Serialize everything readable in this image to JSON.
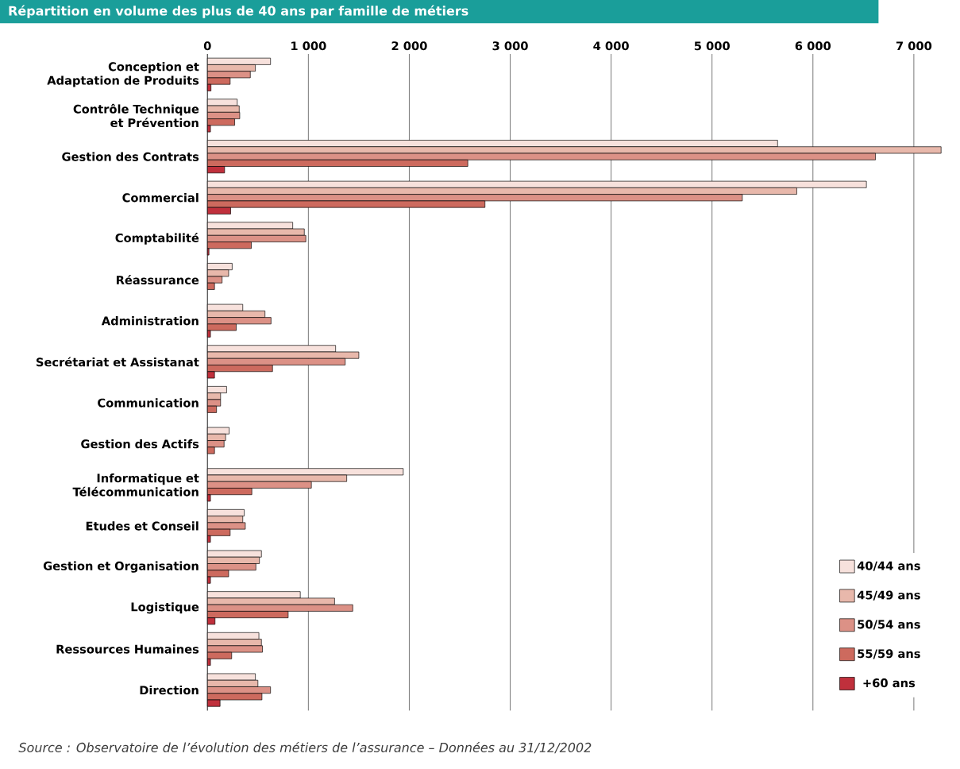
{
  "chart_data": {
    "type": "bar",
    "orientation": "horizontal",
    "title": "Répartition en volume des plus de 40 ans par famille de métiers",
    "categories": [
      "Conception et Adaptation de Produits",
      "Contrôle Technique et Prévention",
      "Gestion des Contrats",
      "Commercial",
      "Comptabilité",
      "Réassurance",
      "Administration",
      "Secrétariat et Assistanat",
      "Communication",
      "Gestion des Actifs",
      "Informatique et Télécommunication",
      "Etudes et Conseil",
      "Gestion et Organisation",
      "Logistique",
      "Ressources Humaines",
      "Direction"
    ],
    "series": [
      {
        "name": "40/44 ans",
        "color": "#f7e1dc",
        "values": [
          625,
          295,
          5650,
          6530,
          845,
          245,
          350,
          1270,
          190,
          215,
          1940,
          365,
          535,
          920,
          510,
          475
        ]
      },
      {
        "name": "45/49 ans",
        "color": "#e8b8ab",
        "values": [
          475,
          315,
          7270,
          5840,
          960,
          210,
          570,
          1500,
          130,
          180,
          1380,
          350,
          515,
          1260,
          535,
          500
        ]
      },
      {
        "name": "50/54 ans",
        "color": "#dc9186",
        "values": [
          425,
          320,
          6620,
          5300,
          975,
          145,
          630,
          1365,
          130,
          165,
          1030,
          375,
          480,
          1440,
          545,
          625
        ]
      },
      {
        "name": "55/59 ans",
        "color": "#cd6a5e",
        "values": [
          225,
          270,
          2580,
          2750,
          435,
          70,
          285,
          645,
          90,
          70,
          440,
          225,
          210,
          800,
          240,
          540
        ]
      },
      {
        "name": "+60 ans",
        "color": "#c0303c",
        "values": [
          35,
          30,
          170,
          230,
          15,
          null,
          30,
          70,
          null,
          null,
          30,
          30,
          30,
          75,
          30,
          125
        ]
      }
    ],
    "xlim": [
      0,
      7300
    ],
    "xticks": [
      0,
      {
        "value": 1000,
        "label": "1 000"
      },
      {
        "value": 2000,
        "label": "2 000"
      },
      {
        "value": 3000,
        "label": "3 000"
      },
      {
        "value": 4000,
        "label": "4 000"
      },
      {
        "value": 5000,
        "label": "5 000"
      },
      {
        "value": 6000,
        "label": "6 000"
      },
      {
        "value": 7000,
        "label": "7 000"
      }
    ],
    "grid": "x",
    "legend": "bottom right",
    "annotations": [
      "Source : Observatoire de l’évolution des métiers de l’assurance – Données au 31/12/2002"
    ]
  }
}
